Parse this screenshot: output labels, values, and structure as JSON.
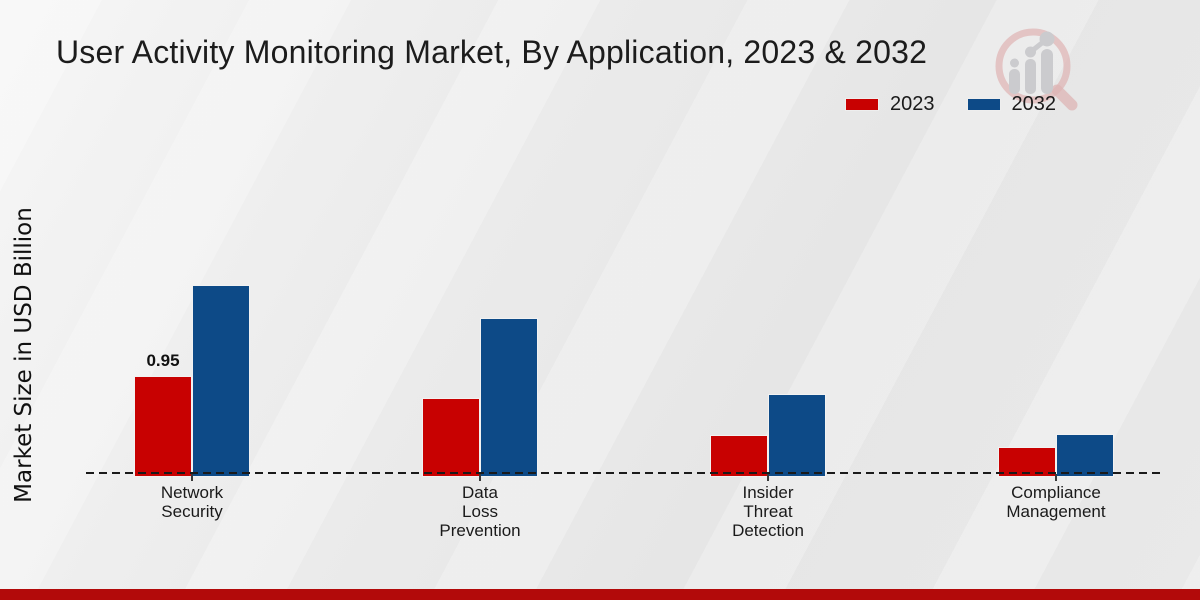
{
  "chart_data": {
    "type": "bar",
    "title": "User Activity Monitoring Market, By Application, 2023 & 2032",
    "ylabel": "Market Size in USD Billion",
    "categories": [
      "Network\nSecurity",
      "Data\nLoss\nPrevention",
      "Insider\nThreat\nDetection",
      "Compliance\nManagement"
    ],
    "series": [
      {
        "name": "2023",
        "color": "#c80101",
        "values": [
          0.95,
          0.74,
          0.39,
          0.28
        ],
        "point_labels": [
          "0.95",
          "",
          "",
          ""
        ]
      },
      {
        "name": "2032",
        "color": "#0d4a87",
        "values": [
          1.8,
          1.49,
          0.78,
          0.4
        ],
        "point_labels": [
          "",
          "",
          "",
          ""
        ]
      }
    ],
    "legend_position": "top-right",
    "grid": false,
    "baseline_style": "dashed",
    "ylim": [
      0,
      2
    ],
    "value_axis_labels_shown": false
  },
  "branding": {
    "watermark_icon": "magnifier-growth-chart-logo",
    "watermark_ring_color": "#ddadad",
    "watermark_bar_color": "#c6c6c9",
    "accent_bar_color": "#b20a0a"
  }
}
